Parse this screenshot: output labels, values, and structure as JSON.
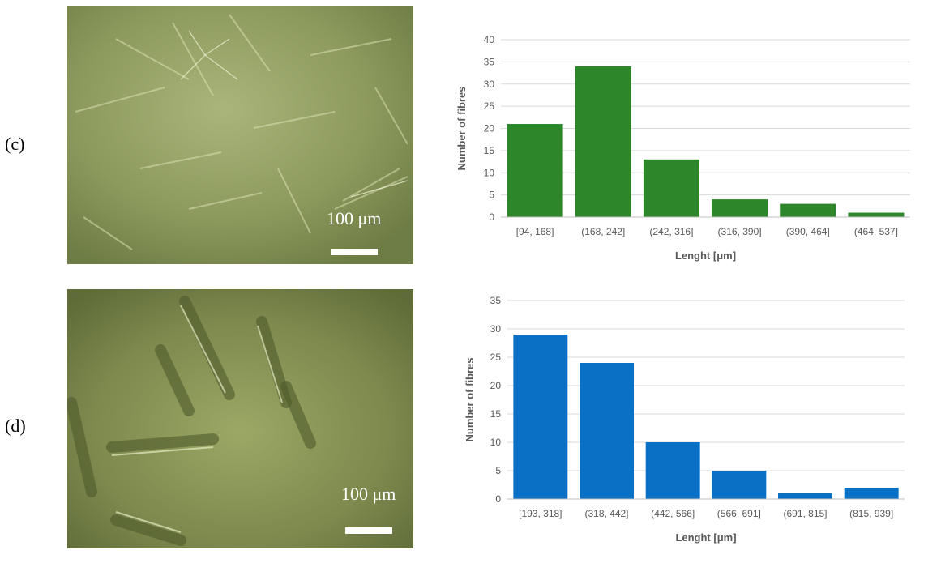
{
  "panels": [
    {
      "label": "(c)",
      "micrograph": {
        "scale_label": "100 μm",
        "tint": "#8d9a5e"
      },
      "chart_data": {
        "type": "bar",
        "categories": [
          "[94, 168]",
          "(168, 242]",
          "(242, 316]",
          "(316, 390]",
          "(390, 464]",
          "(464, 537]"
        ],
        "values": [
          21,
          34,
          13,
          4,
          3,
          1
        ],
        "xlabel": "Lenght [μm]",
        "ylabel": "Number of fibres",
        "ylim": [
          0,
          40
        ],
        "yticks": [
          0,
          5,
          10,
          15,
          20,
          25,
          30,
          35,
          40
        ],
        "bar_color": "#2e862a",
        "grid": true
      }
    },
    {
      "label": "(d)",
      "micrograph": {
        "scale_label": "100 μm",
        "tint": "#7e8a4e"
      },
      "chart_data": {
        "type": "bar",
        "categories": [
          "[193, 318]",
          "(318, 442]",
          "(442, 566]",
          "(566, 691]",
          "(691, 815]",
          "(815, 939]"
        ],
        "values": [
          29,
          24,
          10,
          5,
          1,
          2
        ],
        "xlabel": "Lenght [μm]",
        "ylabel": "Number of fibres",
        "ylim": [
          0,
          35
        ],
        "yticks": [
          0,
          5,
          10,
          15,
          20,
          25,
          30,
          35
        ],
        "bar_color": "#0a70c6",
        "grid": true
      }
    }
  ]
}
